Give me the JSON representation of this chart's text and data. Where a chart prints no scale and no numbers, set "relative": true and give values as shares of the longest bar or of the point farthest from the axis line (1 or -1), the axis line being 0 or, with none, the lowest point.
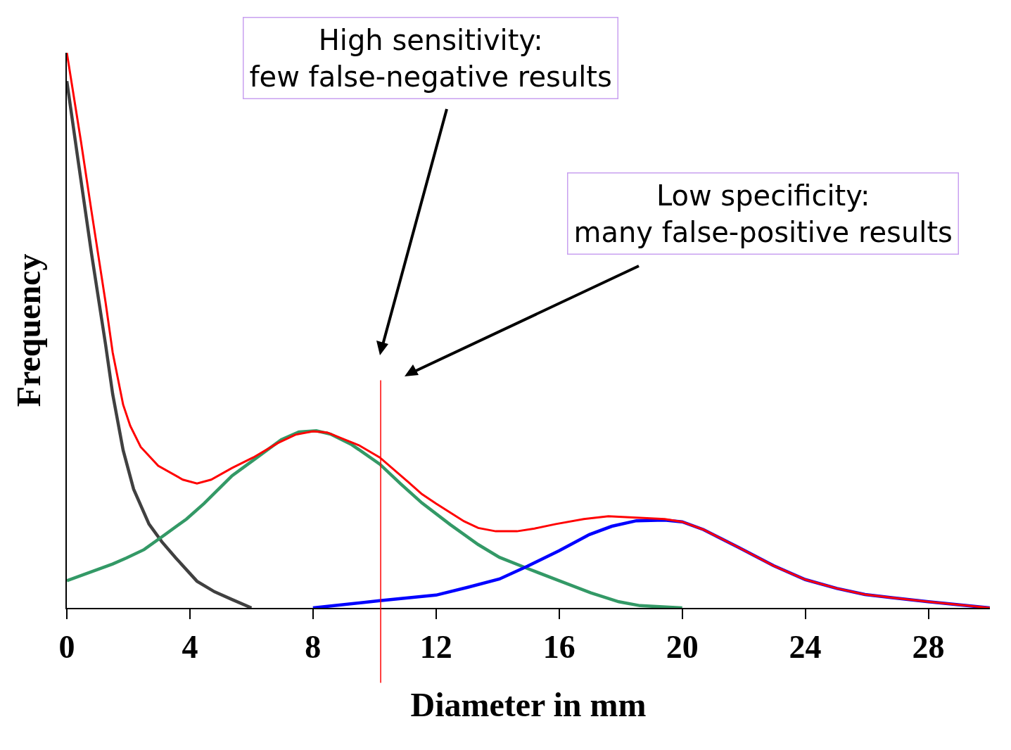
{
  "chart_data": {
    "type": "line",
    "relative": true,
    "xlabel": "Diameter in mm",
    "ylabel": "Frequency",
    "xlim": [
      0,
      30
    ],
    "xticks": [
      0,
      4,
      8,
      12,
      16,
      20,
      24,
      28
    ],
    "grid": false,
    "marker": "none",
    "line_style": "solid",
    "series": [
      {
        "color": "#404040",
        "x": [
          0,
          0.34,
          0.8,
          1.26,
          1.49,
          1.83,
          2.17,
          2.67,
          3.09,
          3.54,
          4.23,
          4.8,
          5.37,
          6.0
        ],
        "values": [
          0.949,
          0.816,
          0.639,
          0.474,
          0.385,
          0.284,
          0.214,
          0.151,
          0.119,
          0.09,
          0.048,
          0.029,
          0.015,
          0
        ]
      },
      {
        "color": "#339966",
        "x": [
          0,
          0.8,
          1.49,
          1.94,
          2.51,
          3.09,
          3.89,
          4.46,
          5.37,
          6.06,
          6.97,
          7.54,
          8.11,
          8.57,
          9.26,
          10.17,
          10.86,
          11.54,
          12.46,
          13.37,
          14.06,
          14.97,
          16.0,
          17.03,
          17.94,
          18.63,
          20
        ],
        "values": [
          0.049,
          0.065,
          0.079,
          0.09,
          0.105,
          0.128,
          0.16,
          0.188,
          0.238,
          0.266,
          0.303,
          0.317,
          0.319,
          0.313,
          0.294,
          0.259,
          0.223,
          0.189,
          0.15,
          0.114,
          0.091,
          0.071,
          0.049,
          0.027,
          0.011,
          0.004,
          0
        ]
      },
      {
        "color": "#0000ff",
        "x": [
          8,
          10.17,
          12,
          13.03,
          14.06,
          14.97,
          16,
          16.98,
          17.71,
          18.51,
          19.43,
          20,
          20.69,
          21.83,
          22.97,
          24.0,
          25.03,
          25.94,
          28.0,
          30
        ],
        "values": [
          0,
          0.013,
          0.023,
          0.037,
          0.052,
          0.075,
          0.103,
          0.132,
          0.147,
          0.157,
          0.158,
          0.155,
          0.141,
          0.109,
          0.076,
          0.051,
          0.035,
          0.024,
          0.011,
          0
        ]
      },
      {
        "color": "#ff0000",
        "x": [
          0,
          0.46,
          0.8,
          1.26,
          1.49,
          1.83,
          2.06,
          2.4,
          2.97,
          3.77,
          4.23,
          4.69,
          5.37,
          6.06,
          6.86,
          7.43,
          8.0,
          8.46,
          9.49,
          10.17,
          11.09,
          11.54,
          12.0,
          12.91,
          13.37,
          13.94,
          14.63,
          15.2,
          15.89,
          16.8,
          17.6,
          18.4,
          19.43,
          20.0,
          20.69,
          21.83,
          22.97,
          24.0,
          25.03,
          25.94,
          28.0,
          30
        ],
        "values": [
          1,
          0.84,
          0.715,
          0.55,
          0.46,
          0.366,
          0.328,
          0.29,
          0.256,
          0.231,
          0.224,
          0.231,
          0.252,
          0.271,
          0.297,
          0.312,
          0.318,
          0.316,
          0.293,
          0.271,
          0.227,
          0.205,
          0.188,
          0.156,
          0.144,
          0.138,
          0.138,
          0.143,
          0.151,
          0.16,
          0.165,
          0.163,
          0.16,
          0.155,
          0.141,
          0.109,
          0.076,
          0.051,
          0.035,
          0.024,
          0.011,
          0
        ]
      }
    ],
    "ref_lines": [
      {
        "axis": "x",
        "value": 10.2,
        "color": "#ff0000"
      }
    ],
    "annotations": [
      "High sensitivity:\nfew false-negative results",
      "Low specificity:\nmany false-positive results"
    ]
  }
}
